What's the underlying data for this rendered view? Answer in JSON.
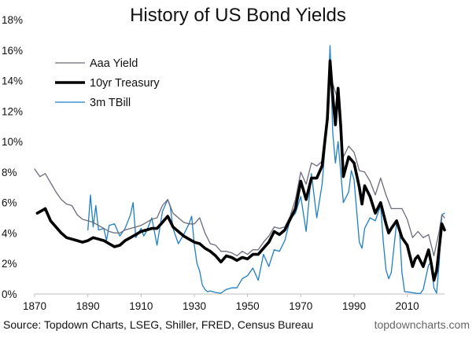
{
  "chart_data": {
    "type": "line",
    "title": "History of US Bond Yields",
    "xlabel": "",
    "ylabel": "",
    "xlim": [
      1870,
      2024
    ],
    "ylim": [
      0,
      18
    ],
    "x_ticks": [
      1870,
      1890,
      1910,
      1930,
      1950,
      1970,
      1990,
      2010
    ],
    "y_ticks": [
      0,
      2,
      4,
      6,
      8,
      10,
      12,
      14,
      16,
      18
    ],
    "y_tick_labels": [
      "0%",
      "2%",
      "4%",
      "6%",
      "8%",
      "10%",
      "12%",
      "14%",
      "16%",
      "18%"
    ],
    "grid": false,
    "legend_position": "top-left",
    "series": [
      {
        "name": "Aaa Yield",
        "color": "#6b6b7b",
        "points": [
          [
            1870,
            8.2
          ],
          [
            1872,
            7.7
          ],
          [
            1874,
            7.9
          ],
          [
            1876,
            7.3
          ],
          [
            1878,
            6.7
          ],
          [
            1880,
            6.2
          ],
          [
            1882,
            5.9
          ],
          [
            1884,
            5.8
          ],
          [
            1886,
            5.2
          ],
          [
            1888,
            4.9
          ],
          [
            1890,
            4.8
          ],
          [
            1892,
            4.7
          ],
          [
            1894,
            4.5
          ],
          [
            1896,
            4.3
          ],
          [
            1898,
            4.1
          ],
          [
            1900,
            4.0
          ],
          [
            1902,
            4.0
          ],
          [
            1904,
            4.2
          ],
          [
            1906,
            4.3
          ],
          [
            1908,
            4.4
          ],
          [
            1910,
            4.5
          ],
          [
            1912,
            4.7
          ],
          [
            1914,
            4.9
          ],
          [
            1916,
            5.0
          ],
          [
            1918,
            5.8
          ],
          [
            1920,
            6.2
          ],
          [
            1922,
            5.3
          ],
          [
            1924,
            5.0
          ],
          [
            1926,
            4.7
          ],
          [
            1928,
            4.6
          ],
          [
            1930,
            4.6
          ],
          [
            1932,
            5.0
          ],
          [
            1934,
            4.0
          ],
          [
            1936,
            3.3
          ],
          [
            1938,
            3.2
          ],
          [
            1940,
            2.8
          ],
          [
            1942,
            2.8
          ],
          [
            1944,
            2.7
          ],
          [
            1946,
            2.5
          ],
          [
            1948,
            2.8
          ],
          [
            1950,
            2.6
          ],
          [
            1952,
            2.9
          ],
          [
            1954,
            2.9
          ],
          [
            1956,
            3.4
          ],
          [
            1958,
            3.8
          ],
          [
            1960,
            4.4
          ],
          [
            1962,
            4.3
          ],
          [
            1964,
            4.4
          ],
          [
            1966,
            5.1
          ],
          [
            1968,
            6.2
          ],
          [
            1970,
            8.0
          ],
          [
            1972,
            7.2
          ],
          [
            1974,
            8.6
          ],
          [
            1976,
            8.4
          ],
          [
            1978,
            8.7
          ],
          [
            1980,
            11.9
          ],
          [
            1981,
            14.2
          ],
          [
            1982,
            13.8
          ],
          [
            1984,
            12.7
          ],
          [
            1986,
            9.0
          ],
          [
            1988,
            9.7
          ],
          [
            1990,
            9.3
          ],
          [
            1992,
            8.1
          ],
          [
            1994,
            8.0
          ],
          [
            1996,
            7.4
          ],
          [
            1998,
            6.5
          ],
          [
            2000,
            7.6
          ],
          [
            2002,
            6.5
          ],
          [
            2004,
            5.6
          ],
          [
            2006,
            5.6
          ],
          [
            2008,
            5.6
          ],
          [
            2010,
            4.9
          ],
          [
            2012,
            3.7
          ],
          [
            2014,
            4.1
          ],
          [
            2016,
            3.7
          ],
          [
            2018,
            3.9
          ],
          [
            2020,
            2.5
          ],
          [
            2022,
            4.1
          ],
          [
            2023,
            5.2
          ],
          [
            2024,
            5.0
          ]
        ]
      },
      {
        "name": "10yr Treasury",
        "color": "#000000",
        "points": [
          [
            1871,
            5.3
          ],
          [
            1873,
            5.5
          ],
          [
            1874,
            5.6
          ],
          [
            1876,
            4.8
          ],
          [
            1878,
            4.4
          ],
          [
            1880,
            4.0
          ],
          [
            1882,
            3.7
          ],
          [
            1884,
            3.6
          ],
          [
            1886,
            3.5
          ],
          [
            1888,
            3.4
          ],
          [
            1890,
            3.5
          ],
          [
            1892,
            3.7
          ],
          [
            1894,
            3.6
          ],
          [
            1896,
            3.5
          ],
          [
            1898,
            3.3
          ],
          [
            1900,
            3.1
          ],
          [
            1902,
            3.2
          ],
          [
            1904,
            3.5
          ],
          [
            1906,
            3.7
          ],
          [
            1908,
            3.9
          ],
          [
            1910,
            4.1
          ],
          [
            1912,
            4.2
          ],
          [
            1914,
            4.3
          ],
          [
            1916,
            4.3
          ],
          [
            1918,
            4.7
          ],
          [
            1920,
            5.1
          ],
          [
            1922,
            4.4
          ],
          [
            1924,
            4.1
          ],
          [
            1926,
            3.8
          ],
          [
            1928,
            3.6
          ],
          [
            1930,
            3.4
          ],
          [
            1932,
            3.3
          ],
          [
            1934,
            3.0
          ],
          [
            1936,
            2.8
          ],
          [
            1938,
            2.5
          ],
          [
            1940,
            2.1
          ],
          [
            1942,
            2.5
          ],
          [
            1944,
            2.4
          ],
          [
            1946,
            2.2
          ],
          [
            1948,
            2.4
          ],
          [
            1950,
            2.3
          ],
          [
            1952,
            2.6
          ],
          [
            1954,
            2.6
          ],
          [
            1956,
            3.0
          ],
          [
            1958,
            3.4
          ],
          [
            1960,
            4.1
          ],
          [
            1962,
            3.9
          ],
          [
            1964,
            4.2
          ],
          [
            1966,
            4.9
          ],
          [
            1968,
            5.6
          ],
          [
            1970,
            7.4
          ],
          [
            1972,
            6.2
          ],
          [
            1974,
            7.6
          ],
          [
            1976,
            7.6
          ],
          [
            1978,
            8.4
          ],
          [
            1980,
            11.5
          ],
          [
            1981,
            15.3
          ],
          [
            1982,
            13.0
          ],
          [
            1983,
            11.1
          ],
          [
            1984,
            13.5
          ],
          [
            1985,
            11.0
          ],
          [
            1986,
            7.7
          ],
          [
            1988,
            9.0
          ],
          [
            1990,
            8.6
          ],
          [
            1992,
            7.0
          ],
          [
            1993,
            5.9
          ],
          [
            1994,
            7.1
          ],
          [
            1996,
            6.4
          ],
          [
            1998,
            5.3
          ],
          [
            2000,
            6.0
          ],
          [
            2002,
            4.6
          ],
          [
            2003,
            4.0
          ],
          [
            2004,
            4.3
          ],
          [
            2006,
            4.8
          ],
          [
            2008,
            3.7
          ],
          [
            2010,
            3.2
          ],
          [
            2012,
            1.8
          ],
          [
            2013,
            2.3
          ],
          [
            2014,
            2.5
          ],
          [
            2016,
            1.8
          ],
          [
            2018,
            2.9
          ],
          [
            2019,
            2.0
          ],
          [
            2020,
            0.9
          ],
          [
            2021,
            1.5
          ],
          [
            2022,
            3.0
          ],
          [
            2023,
            4.6
          ],
          [
            2024,
            4.2
          ]
        ]
      },
      {
        "name": "3m TBill",
        "color": "#1f7fc4",
        "points": [
          [
            1890,
            4.2
          ],
          [
            1891,
            6.5
          ],
          [
            1892,
            4.4
          ],
          [
            1893,
            5.8
          ],
          [
            1894,
            4.2
          ],
          [
            1896,
            4.3
          ],
          [
            1897,
            3.5
          ],
          [
            1898,
            4.5
          ],
          [
            1900,
            4.6
          ],
          [
            1902,
            3.8
          ],
          [
            1904,
            4.3
          ],
          [
            1906,
            5.2
          ],
          [
            1907,
            6.0
          ],
          [
            1908,
            3.7
          ],
          [
            1910,
            4.3
          ],
          [
            1911,
            3.8
          ],
          [
            1912,
            4.1
          ],
          [
            1914,
            5.0
          ],
          [
            1916,
            3.2
          ],
          [
            1918,
            5.4
          ],
          [
            1920,
            6.2
          ],
          [
            1921,
            5.7
          ],
          [
            1922,
            4.3
          ],
          [
            1924,
            3.3
          ],
          [
            1926,
            3.9
          ],
          [
            1928,
            4.6
          ],
          [
            1929,
            5.1
          ],
          [
            1930,
            3.2
          ],
          [
            1931,
            2.0
          ],
          [
            1932,
            1.5
          ],
          [
            1933,
            0.6
          ],
          [
            1934,
            0.3
          ],
          [
            1935,
            0.15
          ],
          [
            1936,
            0.2
          ],
          [
            1938,
            0.1
          ],
          [
            1940,
            0.05
          ],
          [
            1942,
            0.3
          ],
          [
            1944,
            0.4
          ],
          [
            1946,
            0.4
          ],
          [
            1948,
            1.0
          ],
          [
            1950,
            1.2
          ],
          [
            1952,
            1.7
          ],
          [
            1954,
            0.9
          ],
          [
            1956,
            2.6
          ],
          [
            1958,
            1.8
          ],
          [
            1960,
            2.9
          ],
          [
            1962,
            2.8
          ],
          [
            1964,
            3.5
          ],
          [
            1966,
            4.9
          ],
          [
            1968,
            5.3
          ],
          [
            1970,
            6.4
          ],
          [
            1972,
            4.1
          ],
          [
            1974,
            7.9
          ],
          [
            1976,
            5.0
          ],
          [
            1978,
            7.2
          ],
          [
            1980,
            11.5
          ],
          [
            1981,
            16.3
          ],
          [
            1982,
            10.6
          ],
          [
            1983,
            8.6
          ],
          [
            1984,
            10.0
          ],
          [
            1986,
            6.0
          ],
          [
            1988,
            6.7
          ],
          [
            1989,
            8.1
          ],
          [
            1990,
            7.5
          ],
          [
            1992,
            3.4
          ],
          [
            1993,
            3.0
          ],
          [
            1994,
            4.3
          ],
          [
            1996,
            5.0
          ],
          [
            1998,
            4.8
          ],
          [
            2000,
            5.8
          ],
          [
            2001,
            3.4
          ],
          [
            2002,
            1.6
          ],
          [
            2003,
            1.0
          ],
          [
            2004,
            1.4
          ],
          [
            2006,
            4.7
          ],
          [
            2007,
            4.4
          ],
          [
            2008,
            1.4
          ],
          [
            2009,
            0.15
          ],
          [
            2010,
            0.14
          ],
          [
            2012,
            0.08
          ],
          [
            2014,
            0.03
          ],
          [
            2015,
            0.05
          ],
          [
            2016,
            0.3
          ],
          [
            2018,
            1.9
          ],
          [
            2019,
            2.1
          ],
          [
            2020,
            0.4
          ],
          [
            2021,
            0.05
          ],
          [
            2022,
            2.0
          ],
          [
            2023,
            5.2
          ],
          [
            2024,
            5.3
          ]
        ]
      }
    ]
  },
  "footer": {
    "source": "Source: Topdown Charts, LSEG, Shiller, FRED, Census Bureau",
    "brand": "topdowncharts.com"
  }
}
